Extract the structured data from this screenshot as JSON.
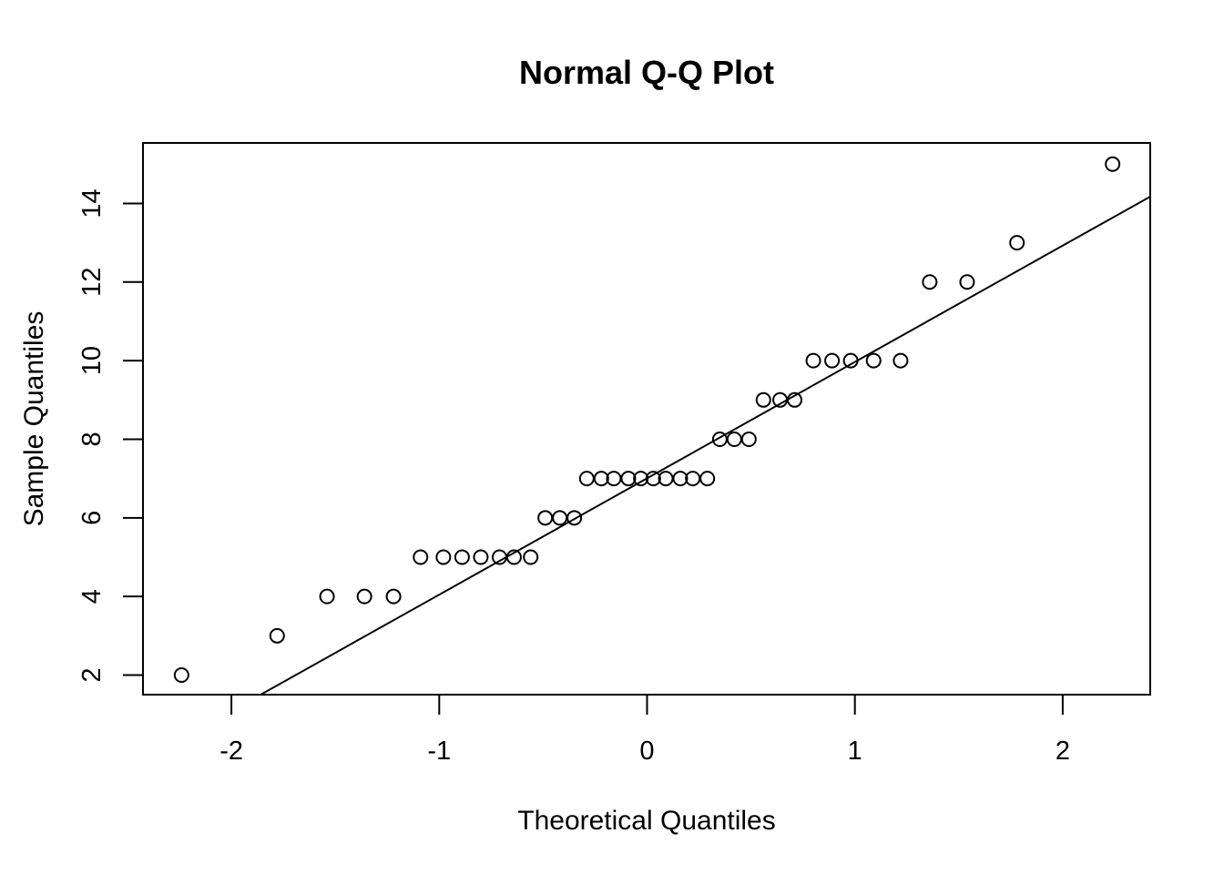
{
  "chart_data": {
    "type": "scatter",
    "title": "Normal Q-Q Plot",
    "xlabel": "Theoretical Quantiles",
    "ylabel": "Sample Quantiles",
    "xlim": [
      -2.43,
      2.43
    ],
    "ylim": [
      1.5,
      15.5
    ],
    "x_ticks": [
      -2,
      -1,
      0,
      1,
      2
    ],
    "x_tick_labels": [
      "-2",
      "-1",
      "0",
      "1",
      "2"
    ],
    "y_ticks": [
      2,
      4,
      6,
      8,
      10,
      12,
      14
    ],
    "y_tick_labels": [
      "2",
      "4",
      "6",
      "8",
      "10",
      "12",
      "14"
    ],
    "grid": false,
    "legend": "none",
    "marker": "open-circle",
    "line_color": "#000000",
    "point_color": "#000000",
    "points": [
      {
        "x": -2.24,
        "y": 2
      },
      {
        "x": -1.78,
        "y": 3
      },
      {
        "x": -1.54,
        "y": 4
      },
      {
        "x": -1.36,
        "y": 4
      },
      {
        "x": -1.22,
        "y": 4
      },
      {
        "x": -1.09,
        "y": 5
      },
      {
        "x": -0.98,
        "y": 5
      },
      {
        "x": -0.89,
        "y": 5
      },
      {
        "x": -0.8,
        "y": 5
      },
      {
        "x": -0.71,
        "y": 5
      },
      {
        "x": -0.64,
        "y": 5
      },
      {
        "x": -0.56,
        "y": 5
      },
      {
        "x": -0.49,
        "y": 6
      },
      {
        "x": -0.42,
        "y": 6
      },
      {
        "x": -0.35,
        "y": 6
      },
      {
        "x": -0.29,
        "y": 7
      },
      {
        "x": -0.22,
        "y": 7
      },
      {
        "x": -0.16,
        "y": 7
      },
      {
        "x": -0.09,
        "y": 7
      },
      {
        "x": -0.03,
        "y": 7
      },
      {
        "x": 0.03,
        "y": 7
      },
      {
        "x": 0.09,
        "y": 7
      },
      {
        "x": 0.16,
        "y": 7
      },
      {
        "x": 0.22,
        "y": 7
      },
      {
        "x": 0.29,
        "y": 7
      },
      {
        "x": 0.35,
        "y": 8
      },
      {
        "x": 0.42,
        "y": 8
      },
      {
        "x": 0.49,
        "y": 8
      },
      {
        "x": 0.56,
        "y": 9
      },
      {
        "x": 0.64,
        "y": 9
      },
      {
        "x": 0.71,
        "y": 9
      },
      {
        "x": 0.8,
        "y": 10
      },
      {
        "x": 0.89,
        "y": 10
      },
      {
        "x": 0.98,
        "y": 10
      },
      {
        "x": 1.09,
        "y": 10
      },
      {
        "x": 1.22,
        "y": 10
      },
      {
        "x": 1.36,
        "y": 12
      },
      {
        "x": 1.54,
        "y": 12
      },
      {
        "x": 1.78,
        "y": 13
      },
      {
        "x": 2.24,
        "y": 15
      }
    ],
    "reference_line": {
      "x1": -1.86,
      "y1": 1.5,
      "x2": 2.43,
      "y2": 14.2
    }
  }
}
